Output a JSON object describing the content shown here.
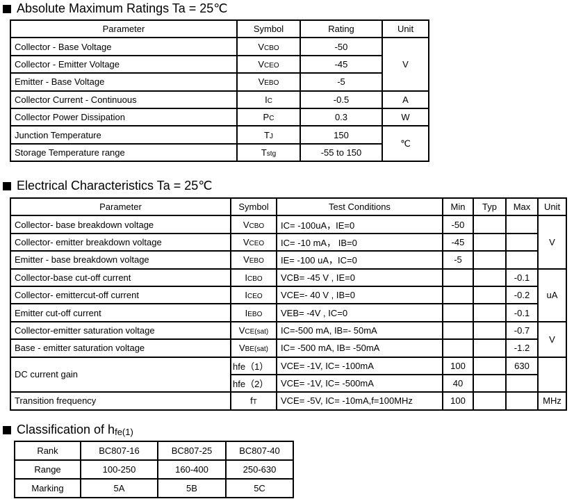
{
  "section1": {
    "title": "Absolute Maximum Ratings Ta = 25℃",
    "headers": [
      "Parameter",
      "Symbol",
      "Rating",
      "Unit"
    ],
    "rows": [
      {
        "parameter": "Collector - Base Voltage",
        "sym": "V",
        "sub": "CBO",
        "rating": "-50"
      },
      {
        "parameter": "Collector - Emitter Voltage",
        "sym": "V",
        "sub": "CEO",
        "rating": "-45"
      },
      {
        "parameter": "Emitter - Base Voltage",
        "sym": "V",
        "sub": "EBO",
        "rating": "-5"
      },
      {
        "parameter": "Collector Current  - Continuous",
        "sym": "I",
        "sub": "C",
        "rating": "-0.5"
      },
      {
        "parameter": "Collector Power Dissipation",
        "sym": "P",
        "sub": "C",
        "rating": "0.3"
      },
      {
        "parameter": "Junction Temperature",
        "sym": "T",
        "sub": "J",
        "rating": "150"
      },
      {
        "parameter": "Storage Temperature range",
        "sym": "T",
        "sub": "stg",
        "rating": "-55 to 150"
      }
    ],
    "units": [
      "V",
      "A",
      "W",
      "℃"
    ]
  },
  "section2": {
    "title": "Electrical Characteristics Ta = 25℃",
    "headers": [
      "Parameter",
      "Symbol",
      "Test Conditions",
      "Min",
      "Typ",
      "Max",
      "Unit"
    ],
    "rows": [
      {
        "parameter": "Collector- base breakdown voltage",
        "sym": "V",
        "sub": "CBO",
        "cond": "IC= -100uA，IE=0",
        "min": "-50",
        "typ": "",
        "max": ""
      },
      {
        "parameter": "Collector- emitter breakdown voltage",
        "sym": "V",
        "sub": "CEO",
        "cond": "IC= -10 mA，  IB=0",
        "min": "-45",
        "typ": "",
        "max": ""
      },
      {
        "parameter": "Emitter - base breakdown voltage",
        "sym": "V",
        "sub": "EBO",
        "cond": "IE= -100 uA，IC=0",
        "min": "-5",
        "typ": "",
        "max": ""
      },
      {
        "parameter": "Collector-base cut-off current",
        "sym": "I",
        "sub": "CBO",
        "cond": "VCB= -45 V , IE=0",
        "min": "",
        "typ": "",
        "max": "-0.1"
      },
      {
        "parameter": "Collector- emittercut-off current",
        "sym": "I",
        "sub": "CEO",
        "cond": "VCE=- 40 V ,  IB=0",
        "min": "",
        "typ": "",
        "max": "-0.2"
      },
      {
        "parameter": "Emitter cut-off current",
        "sym": "I",
        "sub": "EBO",
        "cond": "VEB= -4V , IC=0",
        "min": "",
        "typ": "",
        "max": "-0.1"
      },
      {
        "parameter": "Collector-emitter saturation voltage",
        "sym": "V",
        "sub": "CE(sat)",
        "cond": "IC=-500 mA, IB=- 50mA",
        "min": "",
        "typ": "",
        "max": "-0.7"
      },
      {
        "parameter": "Base - emitter saturation voltage",
        "sym": "V",
        "sub": "BE(sat)",
        "cond": "IC= -500 mA, IB= -50mA",
        "min": "",
        "typ": "",
        "max": "-1.2"
      },
      {
        "parameter": "DC current gain",
        "sym": "hfe（1）",
        "sub": "",
        "cond": "VCE= -1V, IC= -100mA",
        "min": "100",
        "typ": "",
        "max": "630"
      },
      {
        "parameter": "",
        "sym": "hfe（2）",
        "sub": "",
        "cond": "VCE= -1V, IC= -500mA",
        "min": "40",
        "typ": "",
        "max": ""
      },
      {
        "parameter": "Transition frequency",
        "sym": "f",
        "sub": "T",
        "cond": "VCE= -5V, IC= -10mA,f=100MHz",
        "min": "100",
        "typ": "",
        "max": ""
      }
    ],
    "units": [
      "V",
      "uA",
      "V",
      "",
      "MHz"
    ]
  },
  "section3": {
    "title": "Classification of h",
    "title_sub": "fe(1)",
    "rows": [
      {
        "label": "Rank",
        "values": [
          "BC807-16",
          "BC807-25",
          "BC807-40"
        ]
      },
      {
        "label": "Range",
        "values": [
          "100-250",
          "160-400",
          "250-630"
        ]
      },
      {
        "label": "Marking",
        "values": [
          "5A",
          "5B",
          "5C"
        ]
      }
    ]
  }
}
